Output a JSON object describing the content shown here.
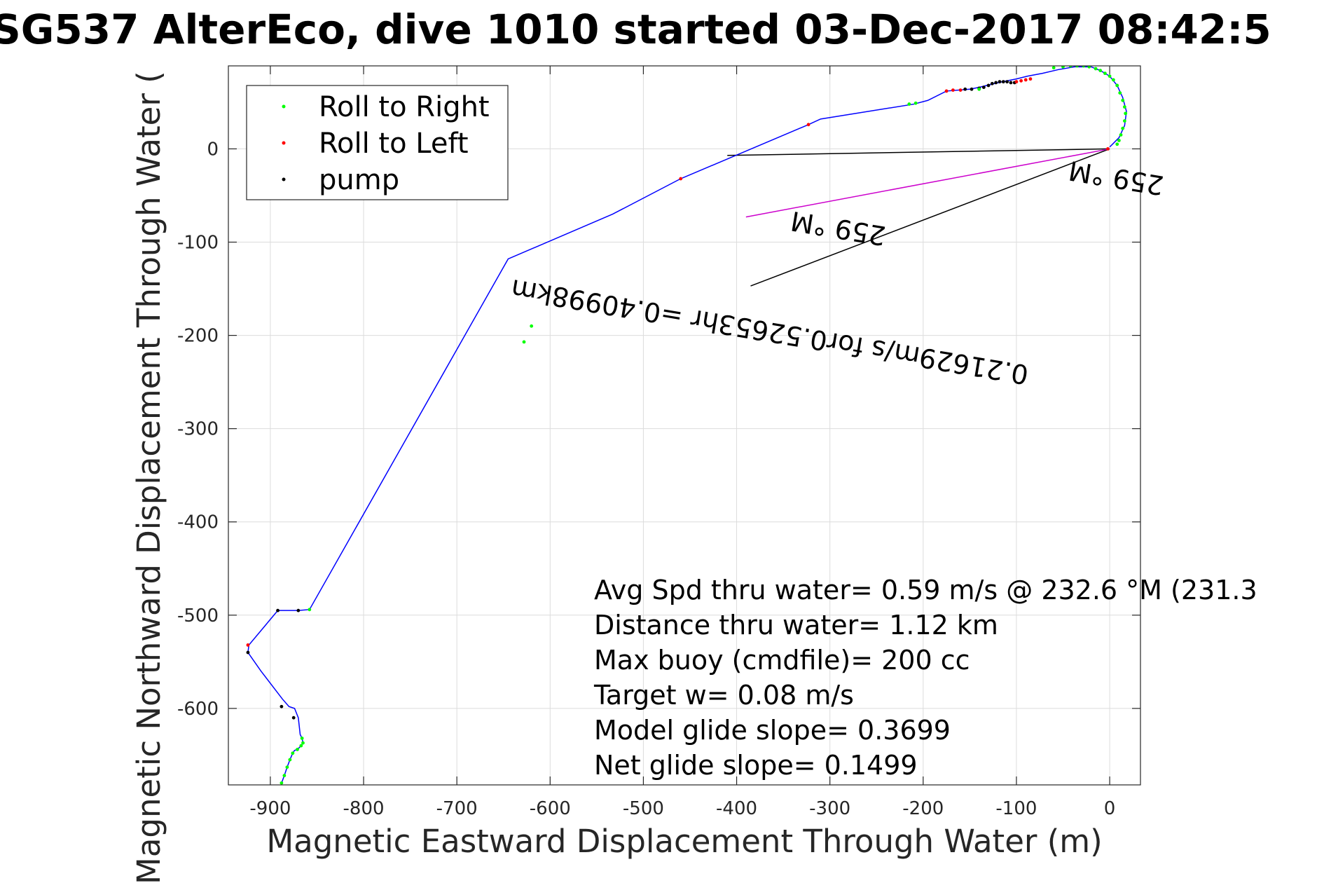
{
  "chart_data": {
    "type": "line",
    "title": "SG537 AlterEco, dive 1010 started 03-Dec-2017 08:42:5",
    "xlabel": "Magnetic Eastward Displacement Through Water (m)",
    "ylabel": "Magnetic Northward Displacement Through Water (",
    "xlim": [
      -945,
      33
    ],
    "ylim": [
      -682,
      89
    ],
    "xticks": [
      -900,
      -800,
      -700,
      -600,
      -500,
      -400,
      -300,
      -200,
      -100,
      0
    ],
    "yticks": [
      0,
      -100,
      -200,
      -300,
      -400,
      -500,
      -600
    ],
    "grid": true,
    "legend_position": "top-left",
    "legend": [
      "Roll to Right",
      "Roll to Left",
      "pump"
    ],
    "colors": {
      "track": "#0000ff",
      "roll_right": "#00ff00",
      "roll_left": "#ff0000",
      "pump": "#000000",
      "current_vector": "#cc00cc",
      "grid": "#dcdcdc",
      "axes": "#262626"
    },
    "track": {
      "x": [
        -888,
        -885,
        -882,
        -879,
        -876,
        -874,
        -871,
        -867,
        -865,
        -866,
        -868,
        -870,
        -874,
        -880,
        -887,
        -910,
        -924,
        -923,
        -892,
        -870,
        -858,
        -645,
        -533,
        -460,
        -323,
        -310,
        -210,
        -195,
        -175,
        -150,
        -140,
        -128,
        -115,
        -100,
        -88,
        -72,
        -55,
        -38,
        -20,
        -10,
        0,
        8,
        14,
        18,
        16,
        10,
        3,
        0
      ],
      "y": [
        -680,
        -672,
        -663,
        -655,
        -648,
        -645,
        -644,
        -640,
        -637,
        -632,
        -628,
        -610,
        -600,
        -598,
        -590,
        -560,
        -540,
        -532,
        -495,
        -495,
        -494,
        -118,
        -70,
        -32,
        26,
        32,
        48,
        52,
        62,
        64,
        66,
        69,
        72,
        75,
        78,
        81,
        85,
        88,
        88,
        84,
        78,
        68,
        55,
        40,
        25,
        12,
        5,
        2
      ]
    },
    "markers": {
      "roll_right": {
        "x": [
          -888,
          -885,
          -882,
          -879,
          -876,
          -871,
          -867,
          -865,
          -866,
          -858,
          -628,
          -620,
          -215,
          -208,
          -140,
          -60,
          -50,
          -42,
          -35,
          -28,
          -22,
          -15,
          -10,
          -5,
          0,
          4,
          8,
          11,
          14,
          16,
          17,
          16,
          14,
          12,
          10,
          8
        ],
        "y": [
          -680,
          -672,
          -663,
          -655,
          -648,
          -644,
          -640,
          -637,
          -632,
          -494,
          -207,
          -190,
          48,
          49,
          64,
          87,
          88,
          89,
          89,
          89,
          88,
          86,
          84,
          81,
          78,
          74,
          68,
          60,
          52,
          45,
          38,
          30,
          22,
          15,
          9,
          5
        ]
      },
      "roll_left": {
        "x": [
          -924,
          -460,
          -323,
          -175,
          -168,
          -160,
          -100,
          -95,
          -90,
          -85,
          -2
        ],
        "y": [
          -532,
          -32,
          26,
          62,
          63,
          63,
          72,
          73,
          74,
          75,
          0
        ]
      },
      "pump": {
        "x": [
          -892,
          -870,
          -924,
          -888,
          -875,
          -155,
          -148,
          -140,
          -135,
          -130,
          -126,
          -122,
          -118,
          -114,
          -110,
          -106,
          -102
        ],
        "y": [
          -495,
          -495,
          -540,
          -598,
          -610,
          64,
          64,
          65,
          66,
          68,
          70,
          71,
          72,
          72,
          72,
          71,
          71
        ]
      }
    },
    "current_vectors": {
      "black_lines": [
        {
          "from": [
            0,
            0
          ],
          "to": [
            -410,
            -7
          ]
        },
        {
          "from": [
            0,
            0
          ],
          "to": [
            -385,
            -147
          ]
        }
      ],
      "magenta_line": {
        "from": [
          0,
          0
        ],
        "to": [
          -390,
          -73
        ]
      }
    },
    "annotations": [
      {
        "text": "0.21629m/s for0.52653hr =0.40998km",
        "at": [
          -640,
          -140
        ],
        "rotate": 189.5
      },
      {
        "text": "259 °M",
        "at": [
          -340,
          -67
        ],
        "rotate": 189.5
      },
      {
        "text": "259 °M",
        "at": [
          -42,
          -13
        ],
        "rotate": 189.5
      }
    ],
    "stats": [
      "Avg Spd thru water=  0.59 m/s @ 232.6 °M (231.3",
      "Distance thru water=  1.12 km",
      "Max buoy (cmdfile)= 200 cc",
      "Target w= 0.08 m/s",
      "Model glide slope= 0.3699",
      "Net glide slope= 0.1499"
    ]
  }
}
